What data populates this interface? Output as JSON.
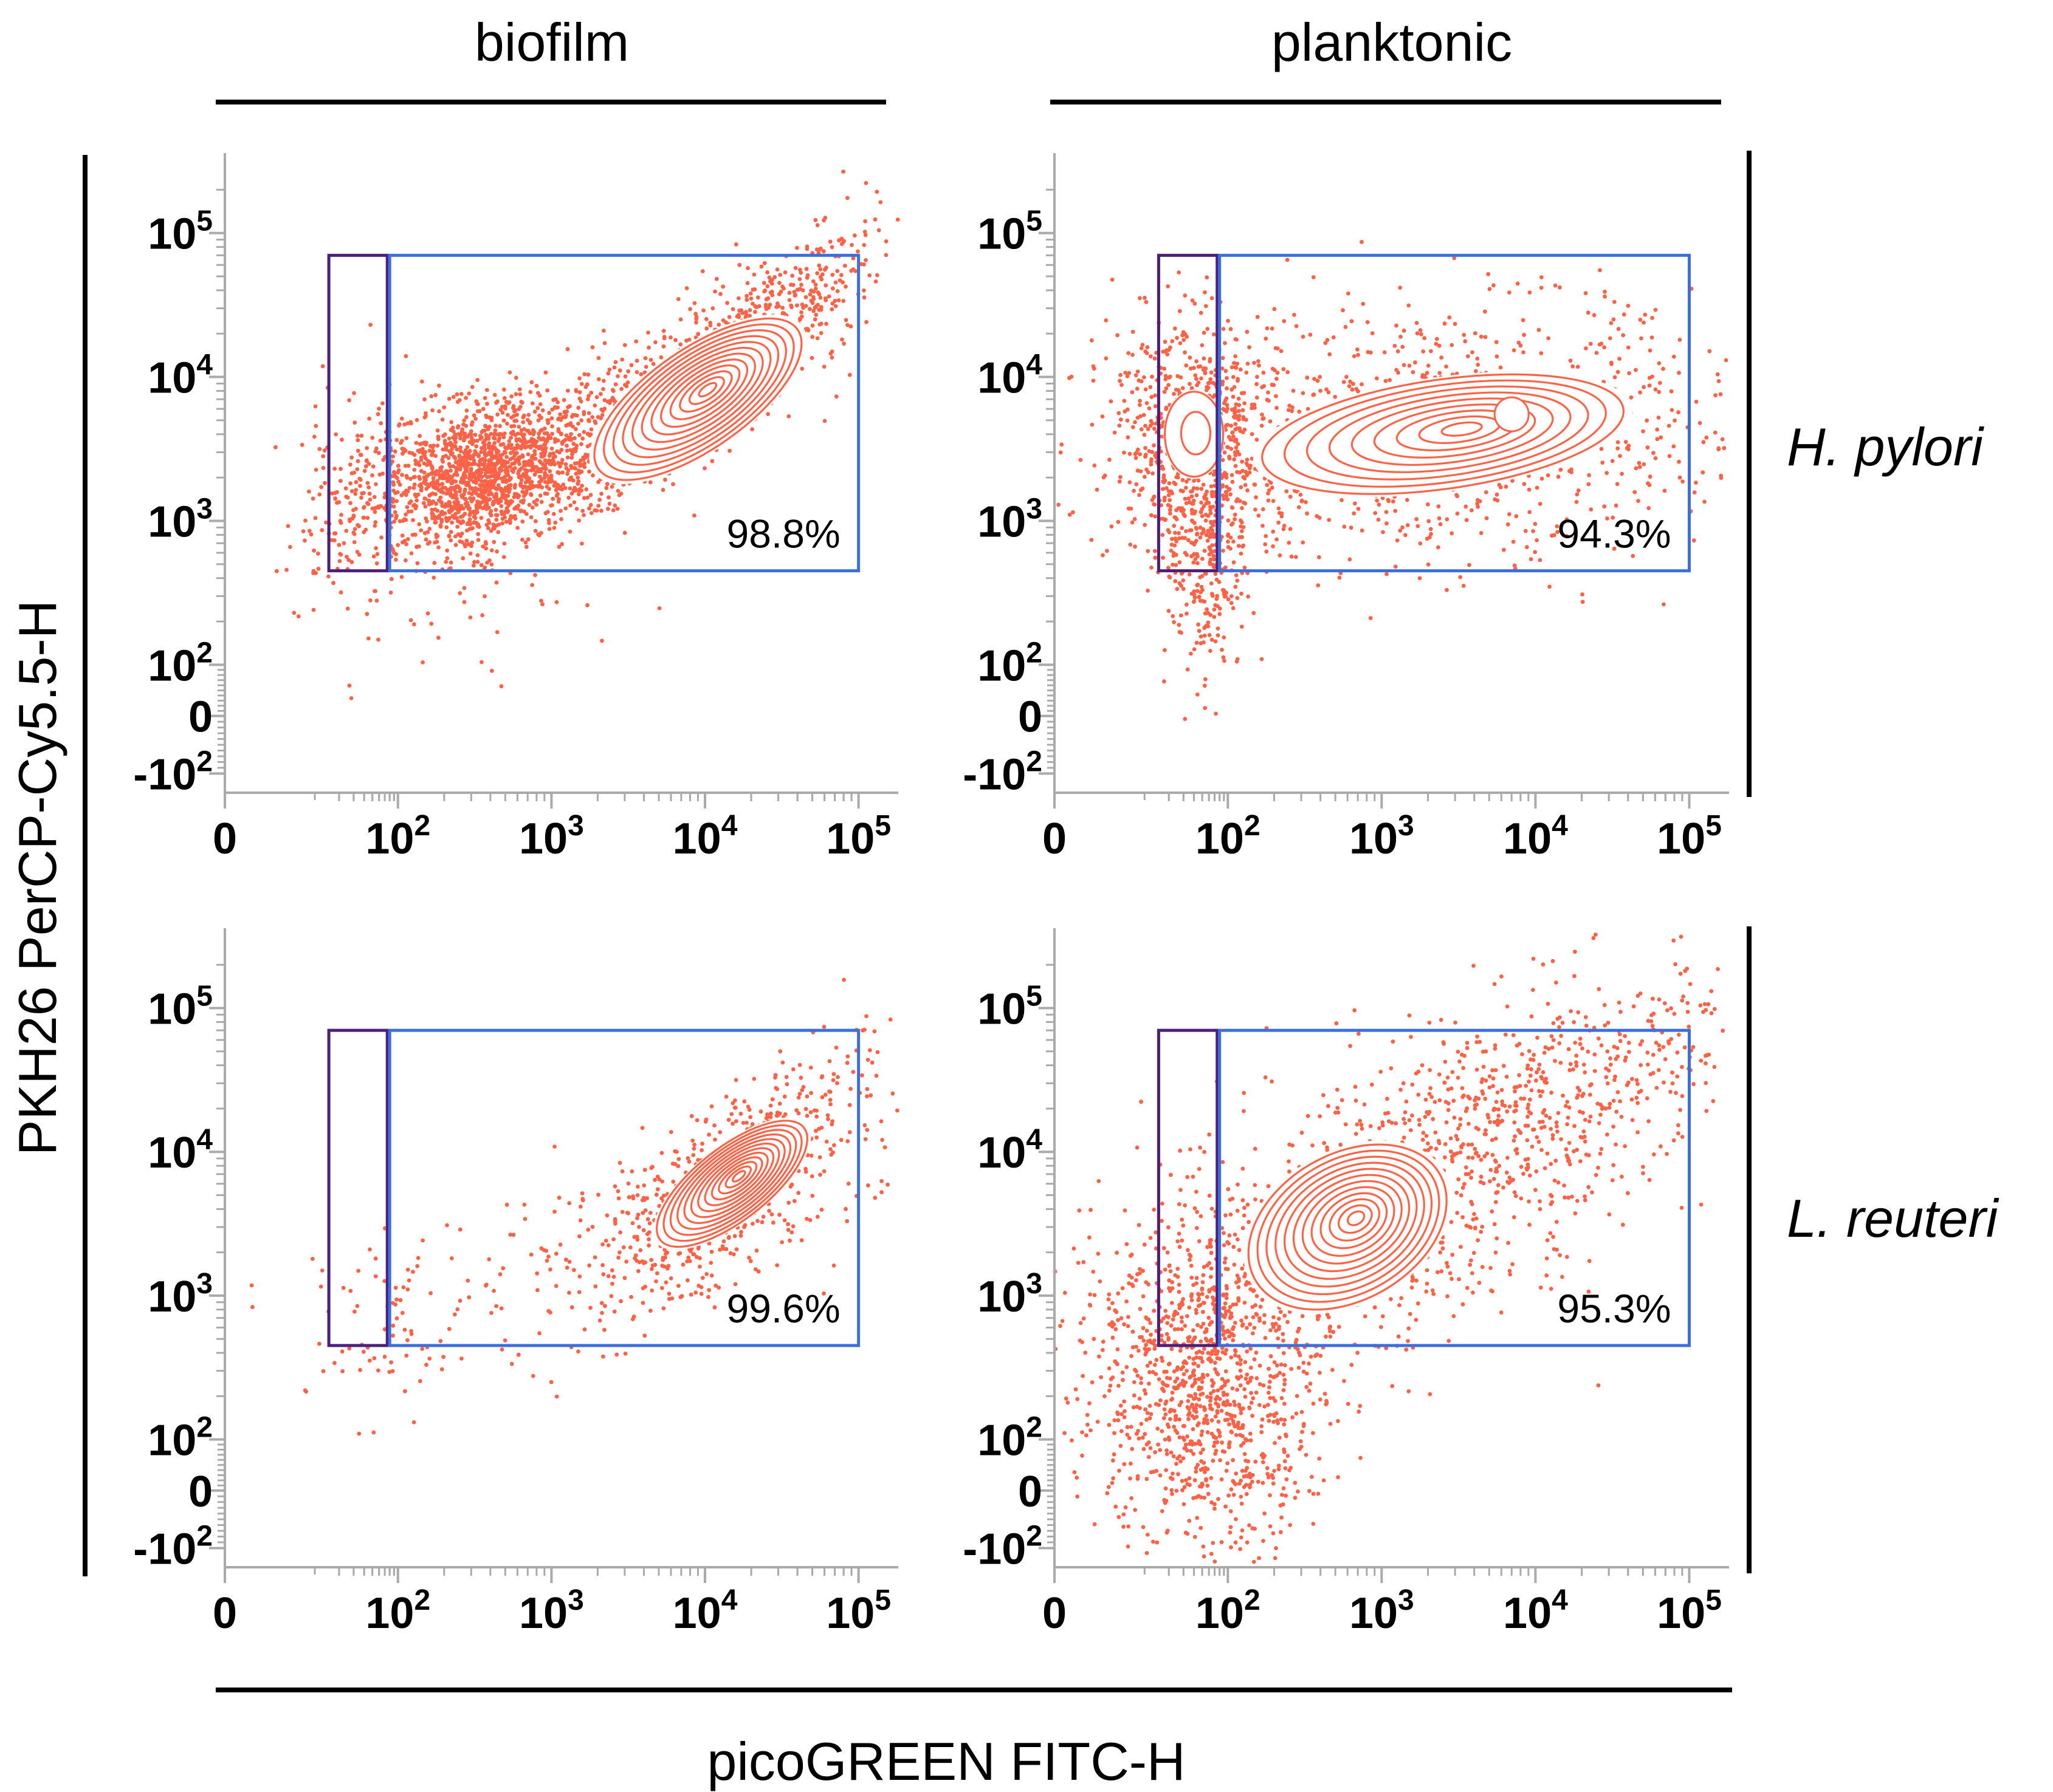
{
  "chart_data": {
    "type": "scatter",
    "plot_kind": "flow cytometry contour plot with outliers, 2x2 grid",
    "column_headers": [
      "biofilm",
      "planktonic"
    ],
    "row_headers": [
      "H. pylori",
      "L. reuteri"
    ],
    "xlabel": "picoGREEN FITC-H",
    "ylabel": "PKH26 PerCP-Cy5.5-H",
    "axis_scale": "biexponential",
    "x_ticks": [
      "0",
      "10^2",
      "10^3",
      "10^4",
      "10^5"
    ],
    "y_ticks": [
      "-10^2",
      "0",
      "10^2",
      "10^3",
      "10^4",
      "10^5"
    ],
    "x_range": [
      -50,
      200000
    ],
    "y_range": [
      -200,
      300000
    ],
    "gates": {
      "negative_gate": {
        "x_range": [
          15,
          75
        ],
        "y_range": [
          450,
          70000
        ],
        "color": "#4b1f7a"
      },
      "positive_gate": {
        "x_range": [
          80,
          100000
        ],
        "y_range": [
          450,
          70000
        ],
        "color": "#3b6fe0"
      }
    },
    "event_color": "#ff6347",
    "panels": [
      {
        "column": "biofilm",
        "row": "H. pylori",
        "gate_percent": "98.8%",
        "populations": [
          {
            "center_x": 8000,
            "center_y": 8000,
            "shape": "elongated diagonal contour"
          },
          {
            "center_x": 300,
            "center_y": 2000,
            "shape": "dense scatter"
          }
        ]
      },
      {
        "column": "planktonic",
        "row": "H. pylori",
        "gate_percent": "94.3%",
        "populations": [
          {
            "center_x": 6000,
            "center_y": 6000,
            "shape": "broad contour"
          },
          {
            "center_x": 40,
            "center_y": 5000,
            "shape": "compact blob"
          }
        ]
      },
      {
        "column": "biofilm",
        "row": "L. reuteri",
        "gate_percent": "99.6%",
        "populations": [
          {
            "center_x": 15000,
            "center_y": 6000,
            "shape": "elongated diagonal contour"
          }
        ]
      },
      {
        "column": "planktonic",
        "row": "L. reuteri",
        "gate_percent": "95.3%",
        "populations": [
          {
            "center_x": 600,
            "center_y": 3000,
            "shape": "broad contour"
          },
          {
            "center_x": 60,
            "center_y": 200,
            "shape": "scatter near zero"
          }
        ]
      }
    ]
  }
}
